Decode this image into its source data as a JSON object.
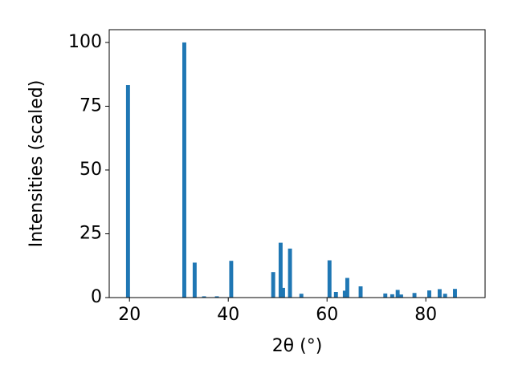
{
  "chart_data": {
    "type": "bar",
    "xlabel": "2θ (°)",
    "ylabel": "Intensities (scaled)",
    "x": [
      19.7,
      31.1,
      33.2,
      35.1,
      37.7,
      40.6,
      49.1,
      50.6,
      51.1,
      52.5,
      54.8,
      60.5,
      61.8,
      63.6,
      64.1,
      66.8,
      71.8,
      73.2,
      74.3,
      75.0,
      77.7,
      80.7,
      82.8,
      83.9,
      85.9
    ],
    "values": [
      83.3,
      100,
      13.7,
      0.5,
      0.5,
      14.4,
      10,
      21.5,
      3.8,
      19.2,
      1.5,
      14.6,
      2.2,
      2.7,
      7.7,
      4.4,
      1.6,
      1.3,
      3.0,
      1.2,
      1.8,
      2.8,
      3.3,
      1.5,
      3.4
    ],
    "color": "#1f77b4",
    "xlim": [
      15.9,
      92.0
    ],
    "ylim": [
      0,
      105
    ],
    "xticks": [
      20,
      40,
      60,
      80
    ],
    "yticks": [
      0,
      25,
      50,
      75,
      100
    ]
  }
}
